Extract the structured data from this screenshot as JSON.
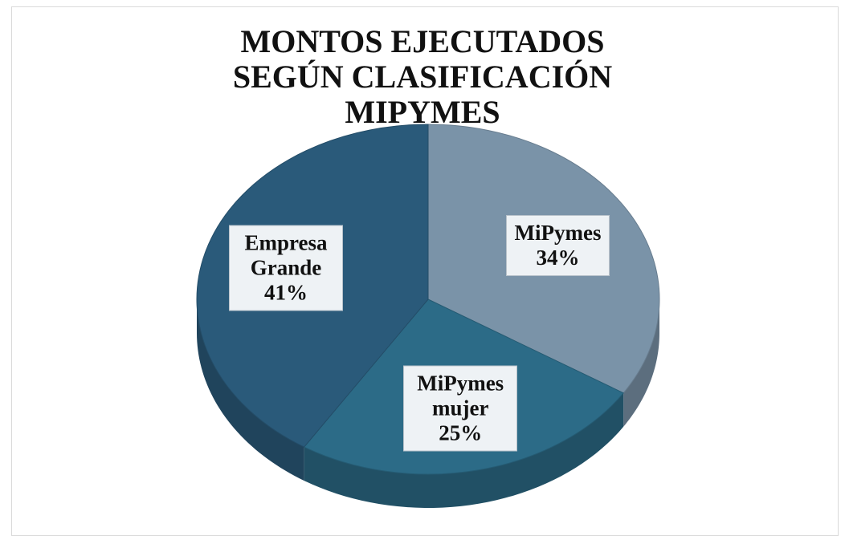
{
  "chart_data": {
    "type": "pie",
    "title": "MONTOS EJECUTADOS SEGÚN CLASIFICACIÓN MIPYMES",
    "categories": [
      "MiPymes",
      "MiPymes mujer",
      "Empresa Grande"
    ],
    "values": [
      34,
      25,
      41
    ],
    "value_labels": [
      "34%",
      "25%",
      "41%"
    ],
    "colors": [
      "#7a93a8",
      "#2c6b87",
      "#2a5a7a"
    ]
  }
}
